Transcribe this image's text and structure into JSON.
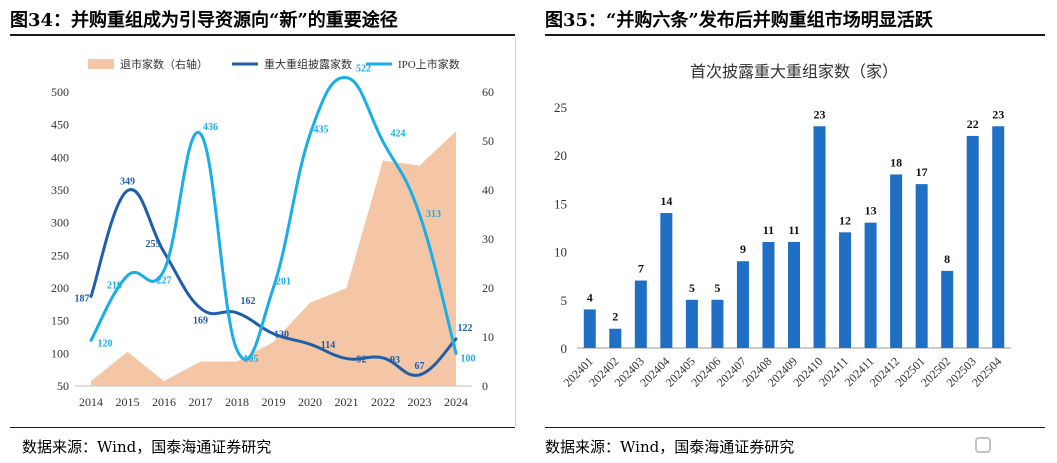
{
  "left_panel": {
    "figure_title": "图34：并购重组成为引导资源向“新”的重要途径",
    "source": "数据来源：Wind，国泰海通证券研究"
  },
  "right_panel": {
    "figure_title": "图35：“并购六条”发布后并购重组市场明显活跃",
    "source": "数据来源：Wind，国泰海通证券研究"
  },
  "watermark_icon": "gelonghui-logo",
  "chart_data": [
    {
      "type": "line",
      "title": "",
      "x": [
        "2014",
        "2015",
        "2016",
        "2017",
        "2018",
        "2019",
        "2020",
        "2021",
        "2022",
        "2023",
        "2024"
      ],
      "ylim_left": [
        50,
        500
      ],
      "yticks_left": [
        50,
        100,
        150,
        200,
        250,
        300,
        350,
        400,
        450,
        500
      ],
      "ylim_right": [
        0,
        60
      ],
      "yticks_right": [
        0,
        10,
        20,
        30,
        40,
        50,
        60
      ],
      "grid": false,
      "legend": "top",
      "series": [
        {
          "name": "退市家数（右轴）",
          "kind": "area",
          "axis": "right",
          "color": "#f5c6a5",
          "values": [
            1,
            7,
            1,
            5,
            5,
            9,
            17,
            20,
            46,
            45,
            52
          ]
        },
        {
          "name": "重大重组披露家数",
          "kind": "line",
          "axis": "left",
          "color": "#1f5fa8",
          "values": [
            187,
            349,
            255,
            169,
            162,
            130,
            114,
            92,
            93,
            67,
            122
          ]
        },
        {
          "name": "IPO上市家数",
          "kind": "line",
          "axis": "left",
          "color": "#1aaee6",
          "values": [
            120,
            219,
            227,
            436,
            105,
            201,
            435,
            522,
            424,
            313,
            100
          ]
        }
      ],
      "data_labels": {
        "重大重组披露家数": [
          "187",
          "349",
          "255",
          "169",
          "162",
          "130",
          "114",
          "92",
          "93",
          "67",
          "122"
        ],
        "IPO上市家数": [
          "120",
          "219",
          "227",
          "436",
          "105",
          "201",
          "435",
          "522",
          "424",
          "313",
          "100"
        ]
      }
    },
    {
      "type": "bar",
      "title": "首次披露重大重组家数（家）",
      "categories": [
        "202401",
        "202402",
        "202403",
        "202404",
        "202405",
        "202406",
        "202407",
        "202408",
        "202409",
        "202410",
        "202411",
        "202411",
        "202412",
        "202501",
        "202502",
        "202503",
        "202504"
      ],
      "values": [
        4,
        2,
        7,
        14,
        5,
        5,
        9,
        11,
        11,
        23,
        12,
        13,
        18,
        17,
        8,
        22,
        23
      ],
      "ylim": [
        0,
        25
      ],
      "yticks": [
        0,
        5,
        10,
        15,
        20,
        25
      ],
      "grid": false,
      "color": "#1f6fc4"
    }
  ]
}
